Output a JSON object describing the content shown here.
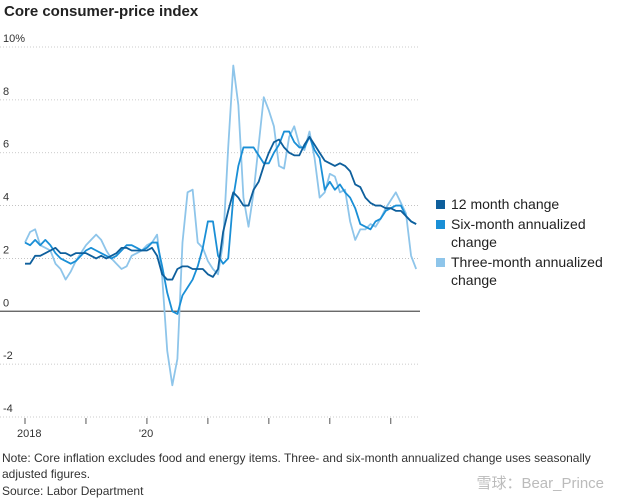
{
  "chart_data": {
    "type": "line",
    "title": "Core consumer-price index",
    "categories": [
      "2018",
      null,
      null,
      null,
      null,
      null,
      null,
      null,
      null,
      null,
      null,
      null,
      null,
      null,
      null,
      null,
      null,
      null,
      null,
      null,
      null,
      null,
      null,
      null,
      "'20",
      null,
      null,
      null,
      null,
      null,
      null,
      null,
      null,
      null,
      null,
      null,
      null,
      null,
      null,
      null,
      null,
      null,
      null,
      null,
      null,
      null,
      null,
      null,
      null,
      null,
      null,
      null,
      null,
      null,
      null,
      null,
      null,
      null,
      null,
      null,
      null,
      null,
      null,
      null,
      null,
      null,
      null,
      null,
      null,
      null,
      null,
      null,
      null,
      null,
      null,
      null,
      null,
      null
    ],
    "series": [
      {
        "name": "12 month change",
        "color": "#0e5f9c",
        "values": [
          1.8,
          1.8,
          2.1,
          2.1,
          2.2,
          2.3,
          2.4,
          2.2,
          2.2,
          2.1,
          2.2,
          2.2,
          2.2,
          2.1,
          2.0,
          2.1,
          2.0,
          2.1,
          2.2,
          2.4,
          2.4,
          2.3,
          2.3,
          2.3,
          2.3,
          2.4,
          2.1,
          1.4,
          1.2,
          1.2,
          1.6,
          1.7,
          1.7,
          1.6,
          1.6,
          1.6,
          1.4,
          1.3,
          1.6,
          3.0,
          3.8,
          4.5,
          4.3,
          4.0,
          4.0,
          4.6,
          4.9,
          5.5,
          6.0,
          6.4,
          6.5,
          6.2,
          6.0,
          5.9,
          5.9,
          6.3,
          6.6,
          6.3,
          6.0,
          5.7,
          5.6,
          5.5,
          5.6,
          5.5,
          5.3,
          4.8,
          4.7,
          4.3,
          4.1,
          4.0,
          4.0,
          3.9,
          3.9,
          3.8,
          3.8,
          3.6,
          3.4,
          3.3
        ]
      },
      {
        "name": "Six-month annualized change",
        "color": "#1a8fd6",
        "values": [
          2.6,
          2.5,
          2.7,
          2.5,
          2.7,
          2.5,
          2.2,
          2.0,
          1.9,
          1.8,
          1.9,
          2.1,
          2.3,
          2.4,
          2.3,
          2.2,
          2.1,
          2.0,
          2.1,
          2.3,
          2.5,
          2.5,
          2.4,
          2.3,
          2.4,
          2.6,
          2.6,
          1.7,
          0.7,
          0.0,
          -0.1,
          0.6,
          0.9,
          1.2,
          1.7,
          2.4,
          3.4,
          3.4,
          2.1,
          1.8,
          2.0,
          4.3,
          5.5,
          6.2,
          6.2,
          6.2,
          5.9,
          5.6,
          5.6,
          6.0,
          6.3,
          6.8,
          6.8,
          6.4,
          6.2,
          6.2,
          6.6,
          6.1,
          5.8,
          4.6,
          4.9,
          4.6,
          4.8,
          4.5,
          4.3,
          3.9,
          3.3,
          3.2,
          3.1,
          3.4,
          3.5,
          3.8,
          3.9,
          4.0,
          4.0,
          3.6,
          3.4,
          3.3
        ]
      },
      {
        "name": "Three-month annualized change",
        "color": "#8ec5ea",
        "values": [
          2.6,
          3.0,
          3.1,
          2.5,
          2.4,
          2.3,
          1.8,
          1.6,
          1.2,
          1.5,
          1.9,
          2.2,
          2.5,
          2.7,
          2.9,
          2.7,
          2.3,
          2.0,
          1.8,
          1.6,
          1.7,
          2.1,
          2.2,
          2.3,
          2.5,
          2.6,
          2.9,
          1.3,
          -1.5,
          -2.8,
          -1.8,
          2.6,
          4.5,
          4.6,
          2.6,
          2.4,
          1.9,
          1.6,
          1.4,
          2.6,
          6.2,
          9.3,
          7.8,
          4.3,
          3.2,
          4.5,
          6.3,
          8.1,
          7.6,
          7.0,
          5.5,
          5.4,
          6.6,
          7.0,
          6.3,
          6.1,
          6.8,
          5.8,
          4.3,
          4.5,
          5.2,
          5.1,
          4.5,
          4.6,
          3.4,
          2.7,
          3.1,
          3.1,
          3.3,
          3.2,
          3.5,
          3.9,
          4.2,
          4.5,
          4.1,
          3.7,
          2.1,
          1.6
        ]
      }
    ],
    "ylim": [
      -4,
      10
    ],
    "yticks": [
      {
        "value": 10,
        "label": "10%"
      },
      8,
      6,
      4,
      2,
      0,
      -2,
      -4
    ],
    "grid": true,
    "legend": "right",
    "note": "Note: Core inflation excludes food and energy items. Three- and six-month annualized change uses seasonally adjusted figures.",
    "source": "Source: Labor Department",
    "watermark": "雪球：Bear_Prince"
  }
}
